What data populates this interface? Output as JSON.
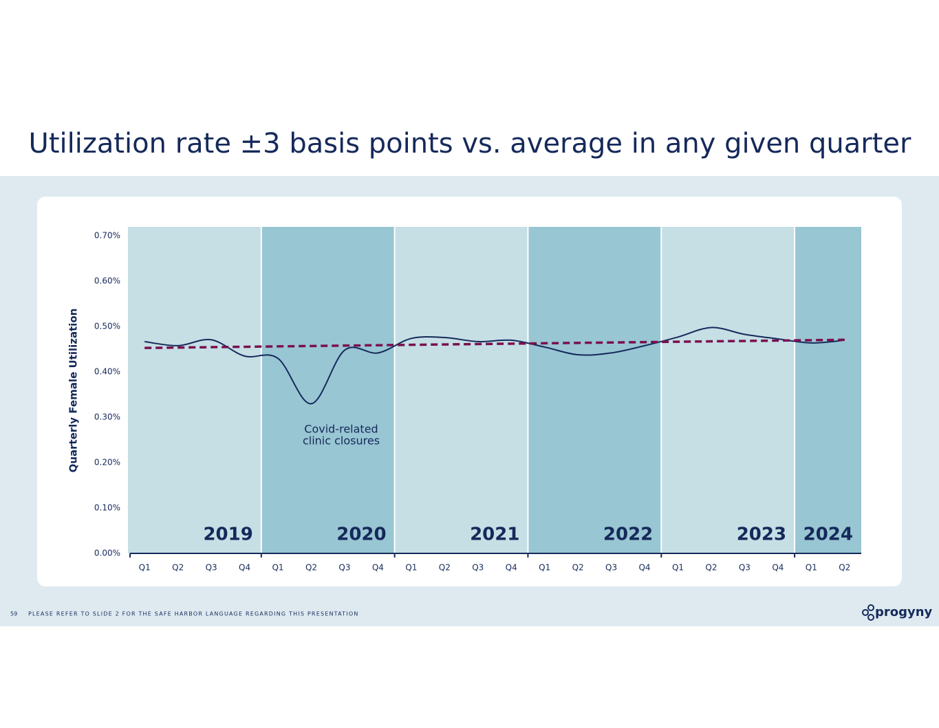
{
  "chart_data": {
    "type": "line",
    "title": "Utilization rate ±3 basis points vs. average in any given quarter",
    "y_label": "Quarterly Female Utilization",
    "categories": [
      "Q1",
      "Q2",
      "Q3",
      "Q4",
      "Q1",
      "Q2",
      "Q3",
      "Q4",
      "Q1",
      "Q2",
      "Q3",
      "Q4",
      "Q1",
      "Q2",
      "Q3",
      "Q4",
      "Q1",
      "Q2",
      "Q3",
      "Q4",
      "Q1",
      "Q2"
    ],
    "years": [
      "2019",
      "2020",
      "2021",
      "2022",
      "2023",
      "2024"
    ],
    "year_colors": [
      "#c5dfe5",
      "#98c6d3"
    ],
    "annotation": [
      "Covid-related",
      "clinic closures"
    ],
    "series": [
      {
        "color": "#15295a",
        "style": "solid",
        "values": [
          0.467,
          0.458,
          0.471,
          0.435,
          0.43,
          0.33,
          0.448,
          0.442,
          0.474,
          0.476,
          0.467,
          0.47,
          0.455,
          0.438,
          0.442,
          0.458,
          0.477,
          0.498,
          0.483,
          0.473,
          0.464,
          0.47
        ]
      },
      {
        "color": "#7a0f4e",
        "style": "dashed",
        "values": [
          0.453,
          0.454,
          0.455,
          0.456,
          0.456,
          0.457,
          0.458,
          0.459,
          0.46,
          0.461,
          0.461,
          0.462,
          0.463,
          0.464,
          0.465,
          0.466,
          0.466,
          0.467,
          0.468,
          0.469,
          0.47,
          0.471
        ]
      }
    ],
    "ylim": [
      0,
      0.72
    ],
    "yticks": [
      {
        "value": 0,
        "label": "0.00%"
      },
      {
        "value": 0.1,
        "label": "0.10%"
      },
      {
        "value": 0.2,
        "label": "0.20%"
      },
      {
        "value": 0.3,
        "label": "0.30%"
      },
      {
        "value": 0.4,
        "label": "0.40%"
      },
      {
        "value": 0.5,
        "label": "0.50%"
      },
      {
        "value": 0.6,
        "label": "0.60%"
      },
      {
        "value": 0.7,
        "label": "0.70%"
      }
    ]
  },
  "footer": {
    "page_number": "59",
    "disclaimer": "PLEASE REFER TO SLIDE 2 FOR THE SAFE HARBOR LANGUAGE REGARDING THIS PRESENTATION",
    "logo": "progyny"
  }
}
